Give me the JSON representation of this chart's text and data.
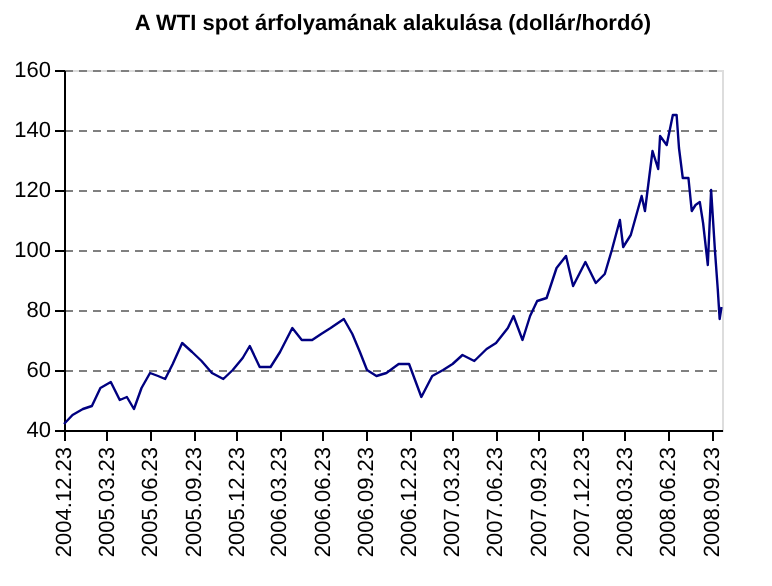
{
  "chart_data": {
    "type": "line",
    "title": "A WTI spot árfolyamának alakulása (dollár/hordó)",
    "x": [
      "2004-12-23",
      "2005-01-10",
      "2005-02-01",
      "2005-02-20",
      "2005-03-10",
      "2005-04-01",
      "2005-04-20",
      "2005-05-05",
      "2005-05-20",
      "2005-06-05",
      "2005-06-23",
      "2005-07-10",
      "2005-07-25",
      "2005-08-10",
      "2005-08-30",
      "2005-09-20",
      "2005-10-10",
      "2005-11-01",
      "2005-11-25",
      "2005-12-15",
      "2006-01-05",
      "2006-01-20",
      "2006-02-10",
      "2006-03-05",
      "2006-03-25",
      "2006-04-20",
      "2006-05-10",
      "2006-06-01",
      "2006-06-20",
      "2006-07-10",
      "2006-08-07",
      "2006-08-25",
      "2006-09-10",
      "2006-09-25",
      "2006-10-15",
      "2006-11-05",
      "2006-12-01",
      "2006-12-23",
      "2007-01-18",
      "2007-02-10",
      "2007-03-05",
      "2007-03-25",
      "2007-04-15",
      "2007-05-10",
      "2007-06-05",
      "2007-06-25",
      "2007-07-20",
      "2007-08-01",
      "2007-08-20",
      "2007-09-05",
      "2007-09-20",
      "2007-10-10",
      "2007-10-31",
      "2007-11-20",
      "2007-12-05",
      "2007-12-31",
      "2008-01-22",
      "2008-02-10",
      "2008-02-25",
      "2008-03-13",
      "2008-03-20",
      "2008-04-05",
      "2008-04-28",
      "2008-05-05",
      "2008-05-21",
      "2008-06-02",
      "2008-06-06",
      "2008-06-20",
      "2008-07-03",
      "2008-07-11",
      "2008-07-16",
      "2008-07-24",
      "2008-08-05",
      "2008-08-12",
      "2008-08-20",
      "2008-08-29",
      "2008-09-05",
      "2008-09-15",
      "2008-09-22",
      "2008-09-30",
      "2008-10-06",
      "2008-10-10",
      "2008-10-14"
    ],
    "series": [
      {
        "color": "#000080",
        "values": [
          42,
          45,
          47,
          48,
          54,
          56,
          50,
          51,
          47,
          54,
          59,
          58,
          57,
          62,
          69,
          66,
          63,
          59,
          57,
          60,
          64,
          68,
          61,
          61,
          66,
          74,
          70,
          70,
          72,
          74,
          77,
          72,
          66,
          60,
          58,
          59,
          62,
          62,
          51,
          58,
          60,
          62,
          65,
          63,
          67,
          69,
          74,
          78,
          70,
          78,
          83,
          84,
          94,
          98,
          88,
          96,
          89,
          92,
          100,
          110,
          101,
          105,
          118,
          113,
          133,
          127,
          138,
          135,
          145,
          145,
          134,
          124,
          124,
          113,
          115,
          116,
          109,
          95,
          120,
          100,
          87,
          77,
          81
        ]
      }
    ],
    "xlim": [
      "2004-12-23",
      "2008-10-15"
    ],
    "xticks": [
      {
        "value": "2004-12-23",
        "label": "2004.12.23"
      },
      {
        "value": "2005-03-23",
        "label": "2005.03.23"
      },
      {
        "value": "2005-06-23",
        "label": "2005.06.23"
      },
      {
        "value": "2005-09-23",
        "label": "2005.09.23"
      },
      {
        "value": "2005-12-23",
        "label": "2005.12.23"
      },
      {
        "value": "2006-03-23",
        "label": "2006.03.23"
      },
      {
        "value": "2006-06-23",
        "label": "2006.06.23"
      },
      {
        "value": "2006-09-23",
        "label": "2006.09.23"
      },
      {
        "value": "2006-12-23",
        "label": "2006.12.23"
      },
      {
        "value": "2007-03-23",
        "label": "2007.03.23"
      },
      {
        "value": "2007-06-23",
        "label": "2007.06.23"
      },
      {
        "value": "2007-09-23",
        "label": "2007.09.23"
      },
      {
        "value": "2007-12-23",
        "label": "2007.12.23"
      },
      {
        "value": "2008-03-23",
        "label": "2008.03.23"
      },
      {
        "value": "2008-06-23",
        "label": "2008.06.23"
      },
      {
        "value": "2008-09-23",
        "label": "2008.09.23"
      }
    ],
    "ylim": [
      40,
      160
    ],
    "yticks": [
      40,
      60,
      80,
      100,
      120,
      140,
      160
    ],
    "grid": "y",
    "line_style": "solid",
    "marker": "none"
  }
}
